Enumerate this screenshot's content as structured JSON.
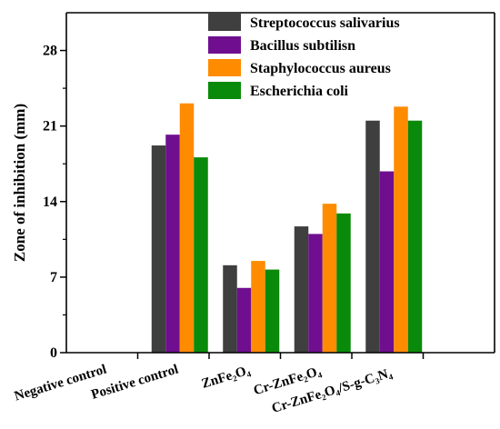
{
  "chart_data": {
    "type": "bar",
    "ylabel": "Zone of inhibition (mm)",
    "xlabel": "",
    "ylim": [
      0,
      31.5
    ],
    "yticks": [
      0,
      7,
      14,
      21,
      28
    ],
    "categories": [
      "Negative control",
      "Positive control",
      "ZnFe₂O₄",
      "Cr-ZnFe₂O₄",
      "Cr-ZnFe₂O₄/S-g-C₃N₄"
    ],
    "series": [
      {
        "name": "Streptococcus salivarius",
        "color": "#3f3f3f",
        "values": [
          0,
          19.2,
          8.1,
          11.7,
          21.5
        ]
      },
      {
        "name": "Bacillus subtilisn",
        "color": "#6f0f8f",
        "values": [
          0,
          20.2,
          6.0,
          11.0,
          16.8
        ]
      },
      {
        "name": "Staphylococcus aureus",
        "color": "#ff8c00",
        "values": [
          0,
          23.1,
          8.5,
          13.8,
          22.8
        ]
      },
      {
        "name": "Escherichia coli",
        "color": "#0a8a0a",
        "values": [
          0,
          18.1,
          7.7,
          12.9,
          21.5
        ]
      }
    ],
    "legend_position": "top-right",
    "grid": false
  }
}
